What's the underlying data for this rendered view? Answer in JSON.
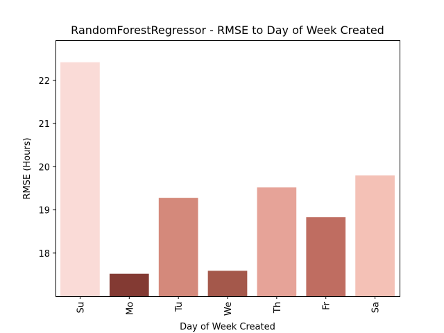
{
  "chart_data": {
    "type": "bar",
    "title": "RandomForestRegressor - RMSE to Day of Week Created",
    "xlabel": "Day of Week Created",
    "ylabel": "RMSE (Hours)",
    "categories": [
      "Su",
      "Mo",
      "Tu",
      "We",
      "Th",
      "Fr",
      "Sa"
    ],
    "values": [
      22.42,
      17.52,
      19.28,
      17.59,
      19.52,
      18.83,
      19.8
    ],
    "colors": [
      "#fadbd7",
      "#833a33",
      "#d4897b",
      "#a4584b",
      "#e6a398",
      "#bf6d61",
      "#f4c1b6"
    ],
    "ylim": [
      17.0,
      22.93
    ],
    "yticks": [
      18,
      19,
      20,
      21,
      22
    ],
    "yticklabels": [
      "18",
      "19",
      "20",
      "21",
      "22"
    ],
    "grid": false,
    "legend": "none"
  }
}
